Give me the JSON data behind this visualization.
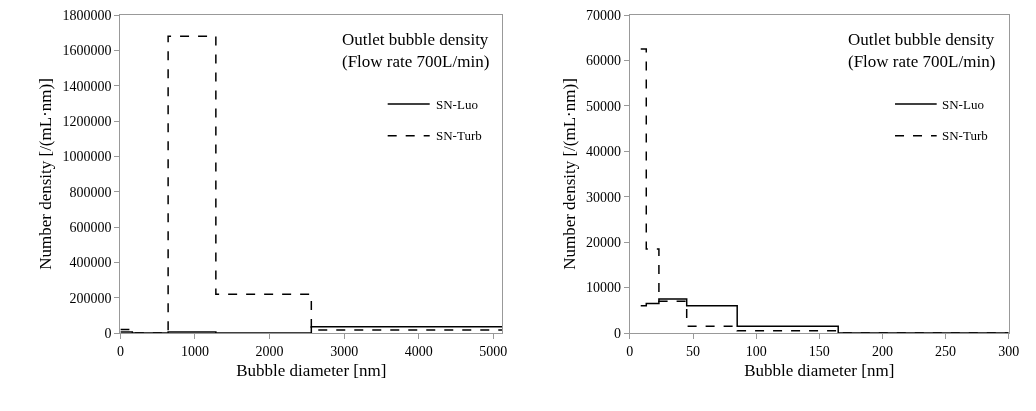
{
  "chart_data": [
    {
      "type": "step",
      "xlabel": "Bubble diameter [nm]",
      "ylabel": "Number density [/(mL·nm)]",
      "annotations": [
        "Outlet bubble density\n(Flow rate 700L/min)"
      ],
      "xlim": [
        0,
        5120
      ],
      "xticks": [
        0,
        1000,
        2000,
        3000,
        4000,
        5000
      ],
      "ylim": [
        0,
        1800000
      ],
      "yticks": [
        0,
        200000,
        400000,
        600000,
        800000,
        1000000,
        1200000,
        1400000,
        1600000,
        1800000
      ],
      "legend": "top right",
      "series": [
        {
          "name": "SN-Luo",
          "color": "#000000",
          "line_style": "solid",
          "x": [
            0,
            160,
            640,
            1280,
            2560,
            5120
          ],
          "values": [
            6000,
            0,
            5000,
            0,
            35000,
            35000
          ]
        },
        {
          "name": "SN-Turb",
          "color": "#000000",
          "line_style": "dashed",
          "x": [
            0,
            160,
            640,
            1280,
            2560,
            5120
          ],
          "values": [
            20000,
            0,
            1680000,
            220000,
            17000,
            17000
          ]
        }
      ]
    },
    {
      "type": "step",
      "xlabel": "Bubble diameter [nm]",
      "ylabel": "Number density [/(mL·nm)]",
      "annotations": [
        "Outlet bubble density\n(Flow rate 700L/min)"
      ],
      "xlim": [
        0,
        300
      ],
      "xticks": [
        0,
        50,
        100,
        150,
        200,
        250,
        300
      ],
      "ylim": [
        0,
        70000
      ],
      "yticks": [
        0,
        10000,
        20000,
        30000,
        40000,
        50000,
        60000,
        70000
      ],
      "legend": "top right",
      "series": [
        {
          "name": "SN-Luo",
          "color": "#000000",
          "line_style": "solid",
          "x": [
            8.6,
            13,
            23,
            45,
            85,
            165,
            300
          ],
          "values": [
            6000,
            6500,
            7500,
            6000,
            1500,
            0,
            0
          ]
        },
        {
          "name": "SN-Turb",
          "color": "#000000",
          "line_style": "dashed",
          "x": [
            8.6,
            13,
            23,
            45,
            85,
            165,
            300
          ],
          "values": [
            62500,
            18500,
            7000,
            1500,
            500,
            0,
            0
          ]
        }
      ]
    }
  ]
}
